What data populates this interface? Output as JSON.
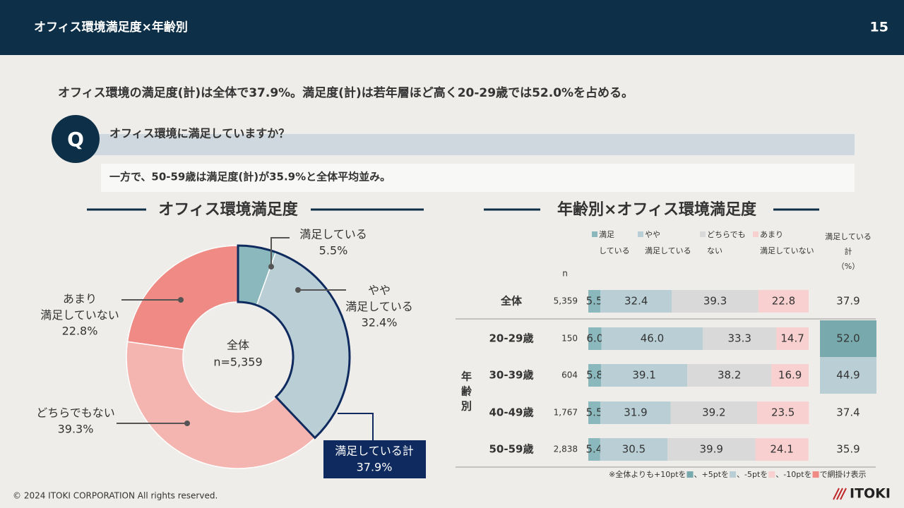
{
  "header": {
    "title": "オフィス環境満足度×年齢別",
    "page": "15"
  },
  "headline": "オフィス環境の満足度(計)は全体で37.9%。満足度(計)は若年層ほど高く20-29歳では52.0%を占める。",
  "question": {
    "mark": "Q",
    "text": "オフィス環境に満足していますか？"
  },
  "note": "一方で、50-59歳は満足度(計)が35.9%と全体平均並み。",
  "footnote": [
    "※全体よりも+10ptを",
    "、+5ptを",
    "、-5ptを",
    "、-10ptを",
    "で網掛け表示"
  ],
  "footer": {
    "copyright": "© 2024 ITOKI CORPORATION All rights reserved.",
    "logo": "ITOKI"
  },
  "chart_data": [
    {
      "type": "donut",
      "title": "オフィス環境満足度",
      "center_label": [
        "全体",
        "n=5,359"
      ],
      "categories": [
        "満足している",
        "やや\n満足している",
        "どちらでもない",
        "あまり\n満足していない"
      ],
      "values": [
        5.5,
        32.4,
        39.3,
        22.8
      ],
      "value_labels": [
        "5.5%",
        "32.4%",
        "39.3%",
        "22.8%"
      ],
      "colors": [
        "#8ab8bc",
        "#b9cfd5",
        "#f4b4b0",
        "#ef8a84"
      ],
      "total": {
        "label": "満足している計",
        "value": 37.9,
        "value_label": "37.9%",
        "color": "#0f2a5e"
      }
    },
    {
      "type": "stacked-bar",
      "title": "年齢別×オフィス環境満足度",
      "orientation": "horizontal",
      "xlim": [
        0,
        100
      ],
      "categories": [
        "全体",
        "20-29歳",
        "30-39歳",
        "40-49歳",
        "50-59歳"
      ],
      "group_label": "年齢別",
      "n_header": "n",
      "n": [
        "5,359",
        "150",
        "604",
        "1,767",
        "2,838"
      ],
      "series": [
        {
          "name": "満足\nしている",
          "color": "#8ab8bc",
          "values": [
            5.5,
            6.0,
            5.8,
            5.5,
            5.4
          ],
          "value_labels": [
            "5.5",
            "6.0",
            "5.8",
            "5.5",
            "5.4"
          ]
        },
        {
          "name": "やや\n満足している",
          "color": "#b9cfd5",
          "values": [
            32.4,
            46.0,
            39.1,
            31.9,
            30.5
          ],
          "value_labels": [
            "32.4",
            "46.0",
            "39.1",
            "31.9",
            "30.5"
          ]
        },
        {
          "name": "どちらでも\nない",
          "color": "#d9d9d9",
          "values": [
            39.3,
            33.3,
            38.2,
            39.2,
            39.9
          ],
          "value_labels": [
            "39.3",
            "33.3",
            "38.2",
            "39.2",
            "39.9"
          ]
        },
        {
          "name": "あまり\n満足していない",
          "color": "#f8d0cf",
          "values": [
            22.8,
            14.7,
            16.9,
            23.5,
            24.1
          ],
          "value_labels": [
            "22.8",
            "14.7",
            "16.9",
            "23.5",
            "24.1"
          ]
        }
      ],
      "totals": {
        "name": "満足している\n計\n（%）",
        "values": [
          37.9,
          52.0,
          44.9,
          37.4,
          35.9
        ],
        "value_labels": [
          "37.9",
          "52.0",
          "44.9",
          "37.4",
          "35.9"
        ],
        "colors": [
          "transparent",
          "#78a9ad",
          "#b9cfd5",
          "transparent",
          "transparent"
        ]
      },
      "footnote_colors": [
        "#78a9ad",
        "#b9cfd5",
        "#f8d0cf",
        "#ef8a84"
      ]
    }
  ]
}
